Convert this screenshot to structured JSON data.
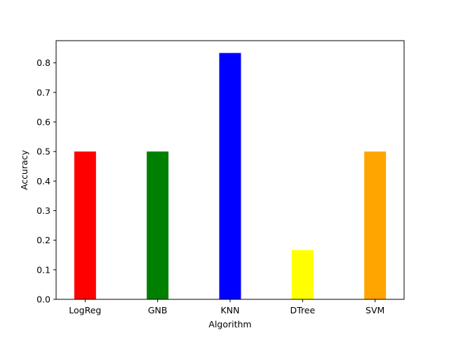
{
  "chart_data": {
    "type": "bar",
    "title": "",
    "xlabel": "Algorithm",
    "ylabel": "Accuracy",
    "categories": [
      "LogReg",
      "GNB",
      "KNN",
      "DTree",
      "SVM"
    ],
    "values": [
      0.5,
      0.5,
      0.8333,
      0.1667,
      0.5
    ],
    "colors": [
      "#ff0000",
      "#008000",
      "#0000ff",
      "#ffff00",
      "#ffa500"
    ],
    "ylim": [
      0,
      0.875
    ],
    "yticks": [
      0.0,
      0.1,
      0.2,
      0.3,
      0.4,
      0.5,
      0.6,
      0.7,
      0.8
    ],
    "ytick_labels": [
      "0.0",
      "0.1",
      "0.2",
      "0.3",
      "0.4",
      "0.5",
      "0.6",
      "0.7",
      "0.8"
    ],
    "grid": false,
    "legend": "none"
  }
}
